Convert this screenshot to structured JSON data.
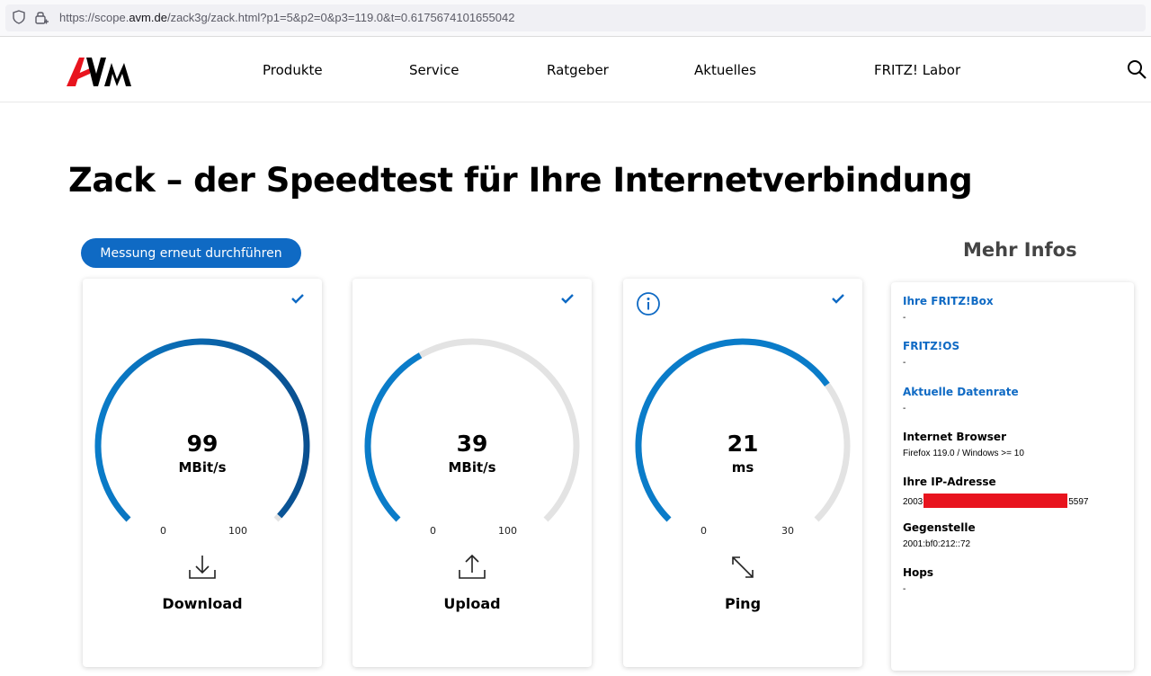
{
  "browser": {
    "url_prefix": "https://scope.",
    "url_domain": "avm.de",
    "url_rest": "/zack3g/zack.html?p1=5&p2=0&p3=119.0&t=0.6175674101655042"
  },
  "header": {
    "logo": "AVM",
    "nav": [
      "Produkte",
      "Service",
      "Ratgeber",
      "Aktuelles",
      "FRITZ! Labor"
    ]
  },
  "page": {
    "title": "Zack – der Speedtest für Ihre Internetverbindung",
    "rerun_label": "Messung erneut durchführen",
    "more_info_title": "Mehr Infos"
  },
  "colors": {
    "accent": "#0f6ac4",
    "gauge_blue": "#0a7cc9",
    "gauge_dark": "#0a4f8f",
    "gauge_track": "#e3e3e3",
    "redaction": "#e8141e"
  },
  "gauges": [
    {
      "label": "Download",
      "value": "99",
      "unit": "MBit/s",
      "min": "0",
      "max": "100",
      "fraction": 0.99,
      "icon": "download-icon"
    },
    {
      "label": "Upload",
      "value": "39",
      "unit": "MBit/s",
      "min": "0",
      "max": "100",
      "fraction": 0.39,
      "icon": "upload-icon"
    },
    {
      "label": "Ping",
      "value": "21",
      "unit": "ms",
      "min": "0",
      "max": "30",
      "fraction": 0.7,
      "icon": "ping-arrows-icon"
    }
  ],
  "info": [
    {
      "key": "Ihre FRITZ!Box",
      "value": "-",
      "blue": true
    },
    {
      "key": "FRITZ!OS",
      "value": "-",
      "blue": true
    },
    {
      "key": "Aktuelle Datenrate",
      "value": "-",
      "blue": true
    },
    {
      "key": "Internet Browser",
      "value": "Firefox 119.0 / Windows >= 10",
      "blue": false
    },
    {
      "key": "Ihre IP-Adresse",
      "value_prefix": "2003",
      "value_suffix": "5597",
      "blue": false
    },
    {
      "key": "Gegenstelle",
      "value": "2001:bf0:212::72",
      "blue": false
    },
    {
      "key": "Hops",
      "value": "-",
      "blue": false
    }
  ]
}
